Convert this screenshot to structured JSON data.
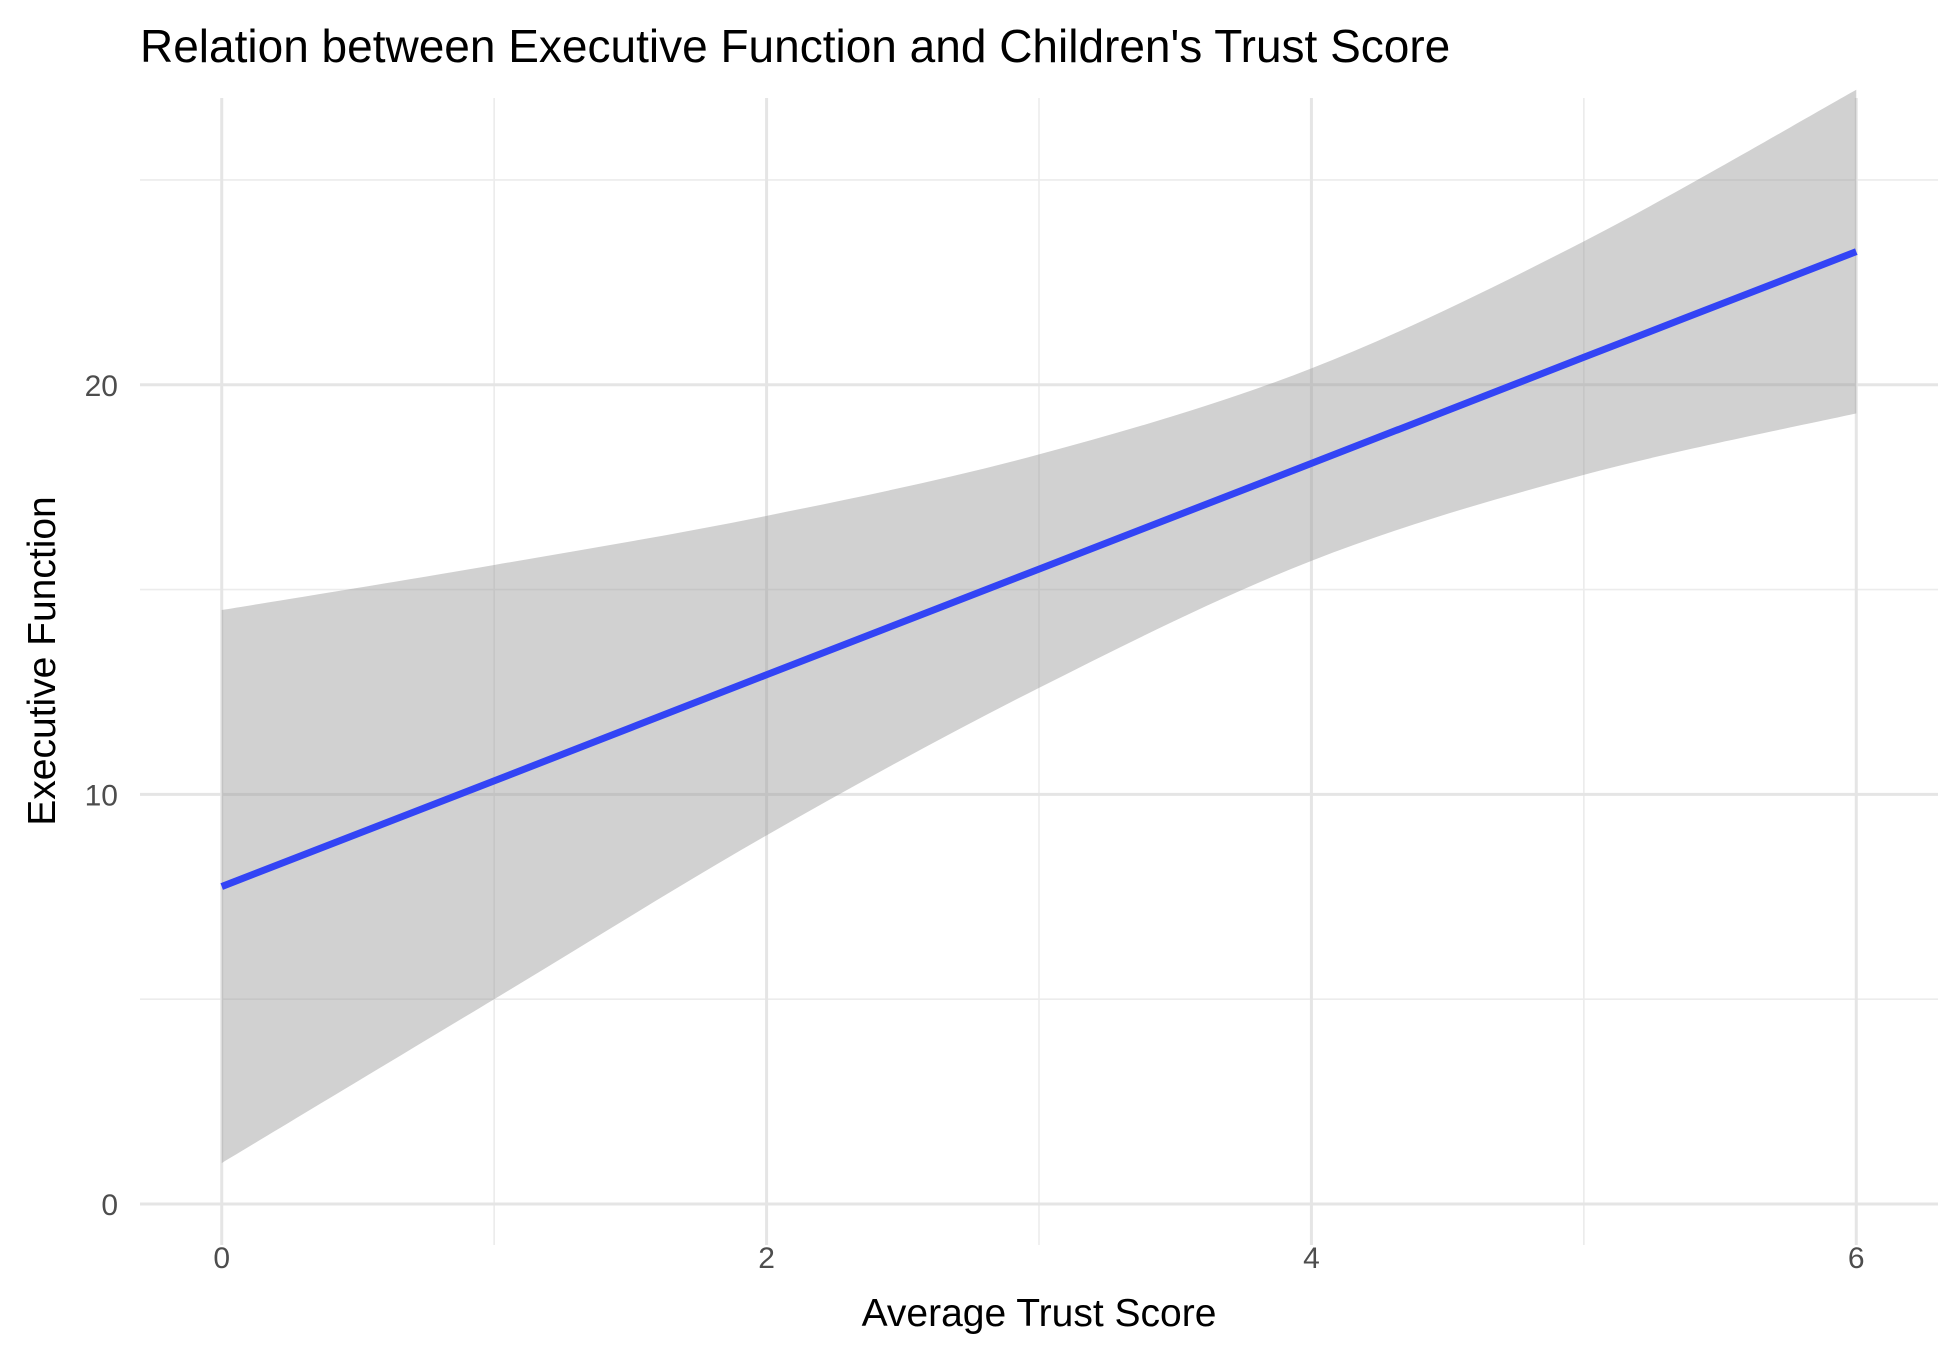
{
  "chart_data": {
    "type": "line",
    "title": "Relation between Executive Function and Children's Trust Score",
    "xlabel": "Average Trust Score",
    "ylabel": "Executive Function",
    "xlim": [
      -0.3,
      6.3
    ],
    "ylim": [
      -1.0,
      27.0
    ],
    "x_ticks": [
      0,
      2,
      4,
      6
    ],
    "x_tick_labels": [
      "0",
      "2",
      "4",
      "6"
    ],
    "y_ticks": [
      0,
      10,
      20
    ],
    "y_tick_labels": [
      "0",
      "10",
      "20"
    ],
    "x_minor_ticks": [
      1,
      3,
      5
    ],
    "y_minor_ticks": [
      5,
      15,
      25
    ],
    "grid": true,
    "legend": "none",
    "line_color": "#3344f5",
    "ribbon_color": "#999999",
    "series": [
      {
        "x": [
          0,
          1,
          2,
          3,
          4,
          5,
          6
        ],
        "fit": [
          7.75,
          10.33,
          12.92,
          15.5,
          18.08,
          20.67,
          23.25
        ],
        "lower": [
          1.0,
          5.0,
          9.0,
          12.6,
          15.7,
          17.8,
          19.3
        ],
        "upper": [
          14.5,
          15.6,
          16.8,
          18.3,
          20.4,
          23.5,
          27.2
        ]
      }
    ]
  }
}
